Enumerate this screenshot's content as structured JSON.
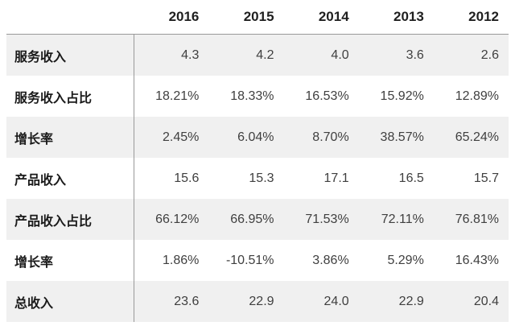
{
  "chart_data": {
    "type": "table",
    "title": "",
    "columns": [
      "2016",
      "2015",
      "2014",
      "2013",
      "2012"
    ],
    "rows": [
      {
        "label": "服务收入",
        "values": [
          "4.3",
          "4.2",
          "4.0",
          "3.6",
          "2.6"
        ]
      },
      {
        "label": "服务收入占比",
        "values": [
          "18.21%",
          "18.33%",
          "16.53%",
          "15.92%",
          "12.89%"
        ]
      },
      {
        "label": "增长率",
        "values": [
          "2.45%",
          "6.04%",
          "8.70%",
          "38.57%",
          "65.24%"
        ]
      },
      {
        "label": "产品收入",
        "values": [
          "15.6",
          "15.3",
          "17.1",
          "16.5",
          "15.7"
        ]
      },
      {
        "label": "产品收入占比",
        "values": [
          "66.12%",
          "66.95%",
          "71.53%",
          "72.11%",
          "76.81%"
        ]
      },
      {
        "label": "增长率",
        "values": [
          "1.86%",
          "-10.51%",
          "3.86%",
          "5.29%",
          "16.43%"
        ]
      },
      {
        "label": "总收入",
        "values": [
          "23.6",
          "22.9",
          "24.0",
          "22.9",
          "20.4"
        ]
      }
    ],
    "layout": {
      "stripe_rows": "odd",
      "divider_after_label_column": true,
      "header_underline": true
    }
  },
  "colors": {
    "row_stripe_bg": "#f0f0f0",
    "row_plain_bg": "#ffffff",
    "divider_line": "#999999",
    "header_text": "#1f1f1f",
    "label_text": "#1a1a1a",
    "value_text": "#3f3f3f"
  }
}
